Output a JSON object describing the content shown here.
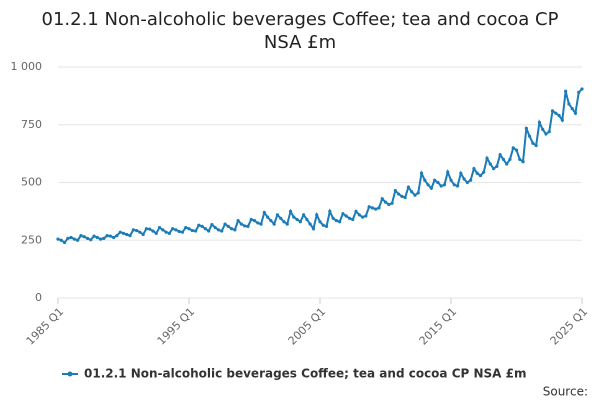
{
  "chart_data": {
    "type": "line",
    "title": "01.2.1 Non-alcoholic beverages Coffee; tea and cocoa CP NSA £m",
    "source": "Source:",
    "categories": [
      "1985 Q1",
      null,
      null,
      null,
      null,
      null,
      null,
      null,
      null,
      null,
      null,
      null,
      null,
      null,
      null,
      null,
      null,
      null,
      null,
      null,
      null,
      null,
      null,
      null,
      null,
      null,
      null,
      null,
      null,
      null,
      null,
      null,
      null,
      null,
      null,
      null,
      null,
      null,
      null,
      null,
      "1995 Q1",
      null,
      null,
      null,
      null,
      null,
      null,
      null,
      null,
      null,
      null,
      null,
      null,
      null,
      null,
      null,
      null,
      null,
      null,
      null,
      null,
      null,
      null,
      null,
      null,
      null,
      null,
      null,
      null,
      null,
      null,
      null,
      null,
      null,
      null,
      null,
      null,
      null,
      null,
      null,
      "2005 Q1",
      null,
      null,
      null,
      null,
      null,
      null,
      null,
      null,
      null,
      null,
      null,
      null,
      null,
      null,
      null,
      null,
      null,
      null,
      null,
      null,
      null,
      null,
      null,
      null,
      null,
      null,
      null,
      null,
      null,
      null,
      null,
      null,
      null,
      null,
      null,
      null,
      null,
      null,
      null,
      "2015 Q1",
      null,
      null,
      null,
      null,
      null,
      null,
      null,
      null,
      null,
      null,
      null,
      null,
      null,
      null,
      null,
      null,
      null,
      null,
      null,
      null,
      null,
      null,
      null,
      null,
      null,
      null,
      null,
      null,
      null,
      null,
      null,
      null,
      null,
      null,
      null,
      null,
      null,
      null,
      null,
      "2025 Q1"
    ],
    "series": [
      {
        "name": "01.2.1 Non-alcoholic beverages Coffee; tea and cocoa CP NSA £m",
        "color": "#1c7cb8",
        "values": [
          255,
          250,
          240,
          258,
          262,
          255,
          250,
          270,
          265,
          258,
          252,
          268,
          262,
          255,
          258,
          270,
          268,
          262,
          270,
          285,
          280,
          275,
          270,
          295,
          292,
          285,
          275,
          300,
          298,
          290,
          280,
          305,
          295,
          285,
          280,
          300,
          295,
          288,
          285,
          305,
          300,
          292,
          290,
          315,
          310,
          300,
          290,
          318,
          305,
          295,
          290,
          320,
          310,
          300,
          295,
          335,
          320,
          312,
          310,
          340,
          335,
          325,
          320,
          370,
          350,
          335,
          320,
          360,
          345,
          330,
          320,
          375,
          350,
          340,
          330,
          360,
          340,
          320,
          300,
          360,
          330,
          315,
          310,
          375,
          345,
          335,
          330,
          365,
          355,
          345,
          340,
          375,
          360,
          350,
          355,
          395,
          390,
          385,
          390,
          430,
          415,
          405,
          410,
          465,
          450,
          440,
          435,
          480,
          460,
          445,
          455,
          540,
          510,
          490,
          475,
          510,
          500,
          485,
          490,
          545,
          510,
          490,
          485,
          540,
          515,
          500,
          510,
          560,
          540,
          530,
          545,
          605,
          580,
          560,
          570,
          620,
          600,
          580,
          600,
          650,
          640,
          600,
          590,
          735,
          700,
          670,
          660,
          760,
          730,
          710,
          720,
          810,
          800,
          790,
          770,
          895,
          840,
          820,
          800,
          890,
          905
        ]
      }
    ],
    "ylim": [
      0,
      1000
    ],
    "yticks": [
      0,
      250,
      500,
      750,
      {
        "value": 1000,
        "label": "1 000"
      }
    ],
    "grid": true
  }
}
